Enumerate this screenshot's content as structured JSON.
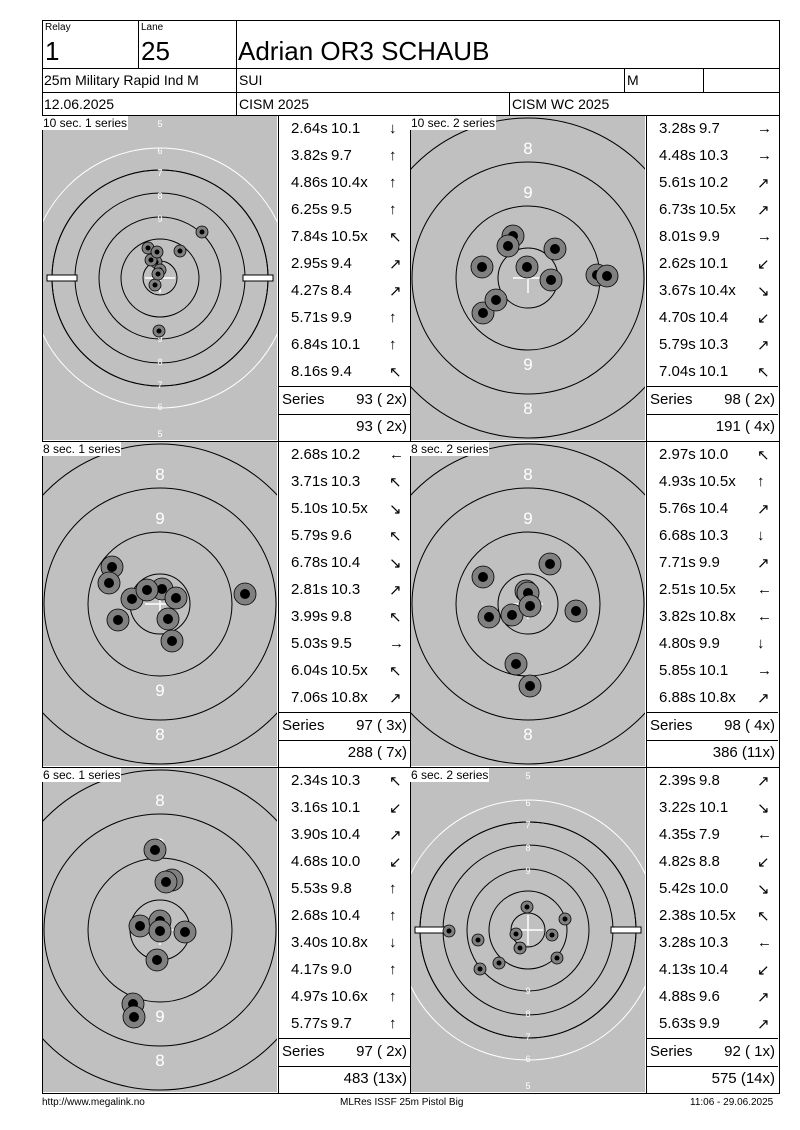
{
  "header": {
    "relay_label": "Relay",
    "relay_value": "1",
    "lane_label": "Lane",
    "lane_value": "25",
    "athlete_name": "Adrian OR3 SCHAUB",
    "event": "25m Military Rapid Ind M",
    "nation": "SUI",
    "gender": "M",
    "date": "12.06.2025",
    "competition": "CISM 2025",
    "championship": "CISM WC 2025"
  },
  "series": [
    {
      "title": "10 sec. 1 series",
      "target": "small",
      "shots": [
        {
          "time": "2.64s",
          "score": "10.1",
          "arrow": "↓"
        },
        {
          "time": "3.82s",
          "score": "9.7",
          "arrow": "↑"
        },
        {
          "time": "4.86s",
          "score": "10.4x",
          "arrow": "↑"
        },
        {
          "time": "6.25s",
          "score": "9.5",
          "arrow": "↑"
        },
        {
          "time": "7.84s",
          "score": "10.5x",
          "arrow": "↖"
        },
        {
          "time": "2.95s",
          "score": "9.4",
          "arrow": "↗"
        },
        {
          "time": "4.27s",
          "score": "8.4",
          "arrow": "↗"
        },
        {
          "time": "5.71s",
          "score": "9.9",
          "arrow": "↑"
        },
        {
          "time": "6.84s",
          "score": "10.1",
          "arrow": "↑"
        },
        {
          "time": "8.16s",
          "score": "9.4",
          "arrow": "↖"
        }
      ],
      "series_label": "Series",
      "series_total": "93 ( 2x)",
      "cumulative": "93 ( 2x)"
    },
    {
      "title": "10 sec. 2 series",
      "target": "big",
      "shots": [
        {
          "time": "3.28s",
          "score": "9.7",
          "arrow": "→"
        },
        {
          "time": "4.48s",
          "score": "10.3",
          "arrow": "→"
        },
        {
          "time": "5.61s",
          "score": "10.2",
          "arrow": "↗"
        },
        {
          "time": "6.73s",
          "score": "10.5x",
          "arrow": "↗"
        },
        {
          "time": "8.01s",
          "score": "9.9",
          "arrow": "→"
        },
        {
          "time": "2.62s",
          "score": "10.1",
          "arrow": "↙"
        },
        {
          "time": "3.67s",
          "score": "10.4x",
          "arrow": "↘"
        },
        {
          "time": "4.70s",
          "score": "10.4",
          "arrow": "↙"
        },
        {
          "time": "5.79s",
          "score": "10.3",
          "arrow": "↗"
        },
        {
          "time": "7.04s",
          "score": "10.1",
          "arrow": "↖"
        }
      ],
      "series_label": "Series",
      "series_total": "98 ( 2x)",
      "cumulative": "191 ( 4x)"
    },
    {
      "title": "8 sec. 1 series",
      "target": "big",
      "shots": [
        {
          "time": "2.68s",
          "score": "10.2",
          "arrow": "←"
        },
        {
          "time": "3.71s",
          "score": "10.3",
          "arrow": "↖"
        },
        {
          "time": "5.10s",
          "score": "10.5x",
          "arrow": "↘"
        },
        {
          "time": "5.79s",
          "score": "9.6",
          "arrow": "↖"
        },
        {
          "time": "6.78s",
          "score": "10.4",
          "arrow": "↘"
        },
        {
          "time": "2.81s",
          "score": "10.3",
          "arrow": "↗"
        },
        {
          "time": "3.99s",
          "score": "9.8",
          "arrow": "↖"
        },
        {
          "time": "5.03s",
          "score": "9.5",
          "arrow": "→"
        },
        {
          "time": "6.04s",
          "score": "10.5x",
          "arrow": "↖"
        },
        {
          "time": "7.06s",
          "score": "10.8x",
          "arrow": "↗"
        }
      ],
      "series_label": "Series",
      "series_total": "97 ( 3x)",
      "cumulative": "288 ( 7x)"
    },
    {
      "title": "8 sec. 2 series",
      "target": "big",
      "shots": [
        {
          "time": "2.97s",
          "score": "10.0",
          "arrow": "↖"
        },
        {
          "time": "4.93s",
          "score": "10.5x",
          "arrow": "↑"
        },
        {
          "time": "5.76s",
          "score": "10.4",
          "arrow": "↗"
        },
        {
          "time": "6.68s",
          "score": "10.3",
          "arrow": "↓"
        },
        {
          "time": "7.71s",
          "score": "9.9",
          "arrow": "↗"
        },
        {
          "time": "2.51s",
          "score": "10.5x",
          "arrow": "←"
        },
        {
          "time": "3.82s",
          "score": "10.8x",
          "arrow": "←"
        },
        {
          "time": "4.80s",
          "score": "9.9",
          "arrow": "↓"
        },
        {
          "time": "5.85s",
          "score": "10.1",
          "arrow": "→"
        },
        {
          "time": "6.88s",
          "score": "10.8x",
          "arrow": "↗"
        }
      ],
      "series_label": "Series",
      "series_total": "98 ( 4x)",
      "cumulative": "386 (11x)"
    },
    {
      "title": "6 sec. 1 series",
      "target": "big",
      "shots": [
        {
          "time": "2.34s",
          "score": "10.3",
          "arrow": "↖"
        },
        {
          "time": "3.16s",
          "score": "10.1",
          "arrow": "↙"
        },
        {
          "time": "3.90s",
          "score": "10.4",
          "arrow": "↗"
        },
        {
          "time": "4.68s",
          "score": "10.0",
          "arrow": "↙"
        },
        {
          "time": "5.53s",
          "score": "9.8",
          "arrow": "↑"
        },
        {
          "time": "2.68s",
          "score": "10.4",
          "arrow": "↑"
        },
        {
          "time": "3.40s",
          "score": "10.8x",
          "arrow": "↓"
        },
        {
          "time": "4.17s",
          "score": "9.0",
          "arrow": "↑"
        },
        {
          "time": "4.97s",
          "score": "10.6x",
          "arrow": "↑"
        },
        {
          "time": "5.77s",
          "score": "9.7",
          "arrow": "↑"
        }
      ],
      "series_label": "Series",
      "series_total": "97 ( 2x)",
      "cumulative": "483 (13x)"
    },
    {
      "title": "6 sec. 2 series",
      "target": "small",
      "shots": [
        {
          "time": "2.39s",
          "score": "9.8",
          "arrow": "↗"
        },
        {
          "time": "3.22s",
          "score": "10.1",
          "arrow": "↘"
        },
        {
          "time": "4.35s",
          "score": "7.9",
          "arrow": "←"
        },
        {
          "time": "4.82s",
          "score": "8.8",
          "arrow": "↙"
        },
        {
          "time": "5.42s",
          "score": "10.0",
          "arrow": "↘"
        },
        {
          "time": "2.38s",
          "score": "10.5x",
          "arrow": "↖"
        },
        {
          "time": "3.28s",
          "score": "10.3",
          "arrow": "←"
        },
        {
          "time": "4.13s",
          "score": "10.4",
          "arrow": "↙"
        },
        {
          "time": "4.88s",
          "score": "9.6",
          "arrow": "↗"
        },
        {
          "time": "5.63s",
          "score": "9.9",
          "arrow": "↗"
        }
      ],
      "series_label": "Series",
      "series_total": "92 ( 1x)",
      "cumulative": "575 (14x)"
    }
  ],
  "ring_labels": {
    "small": [
      "5",
      "6",
      "7",
      "8",
      "9"
    ],
    "big": [
      "8",
      "9"
    ]
  },
  "footer": {
    "left": "http://www.megalink.no",
    "center": "MLRes ISSF 25m Pistol Big",
    "right": "11:06 - 29.06.2025"
  },
  "colors": {
    "target_gray": "#c0c0c0",
    "shot_outer": "#808080",
    "shot_inner": "#000000"
  }
}
